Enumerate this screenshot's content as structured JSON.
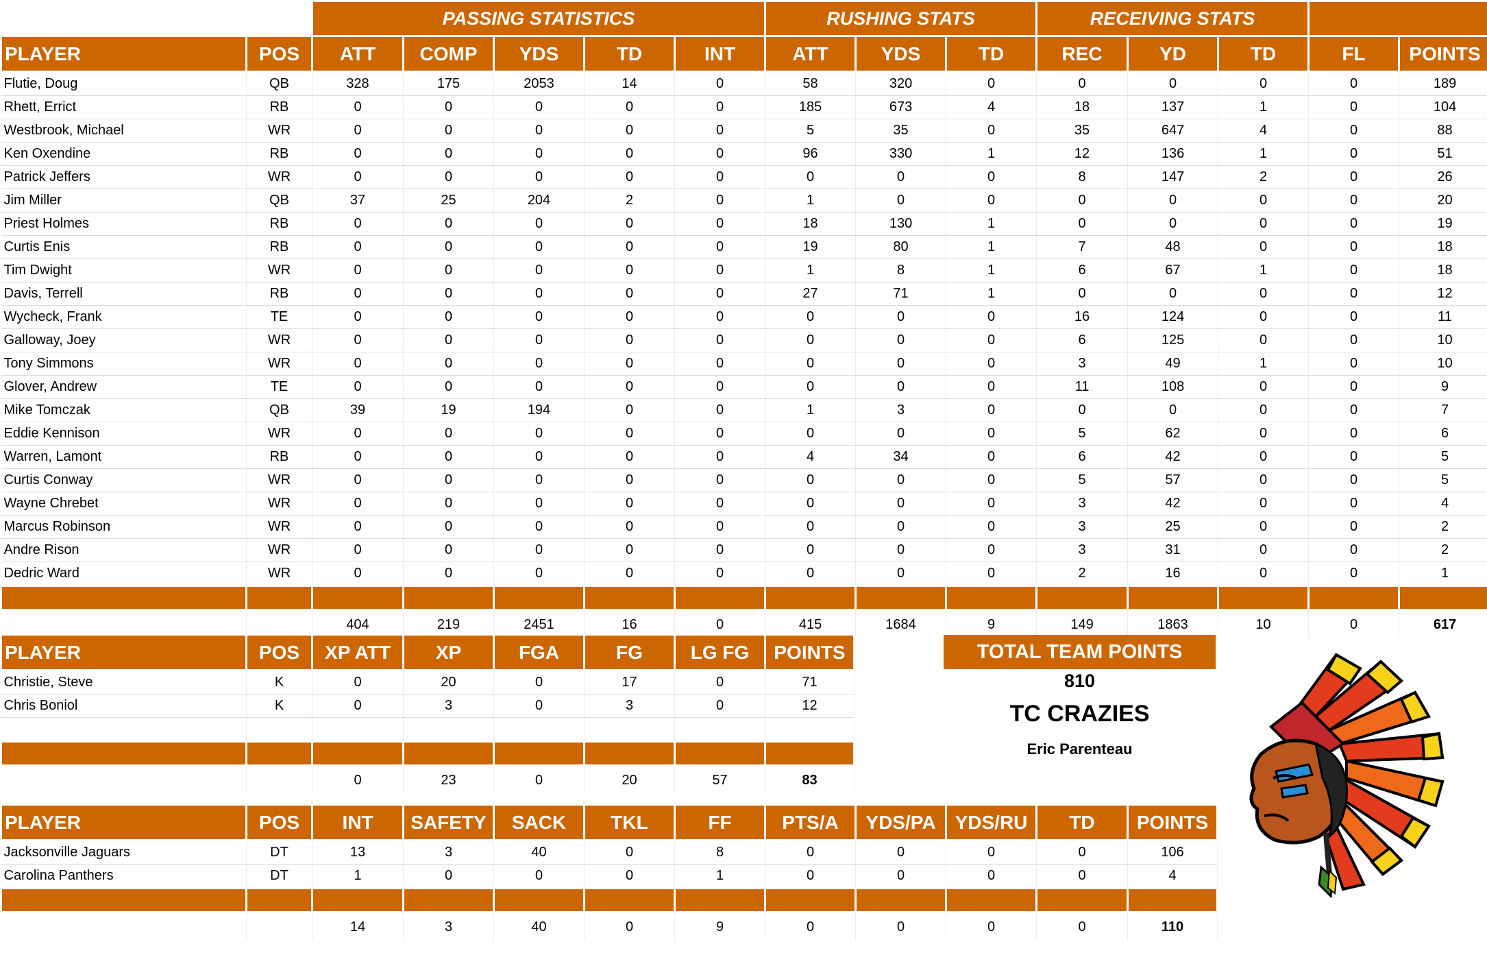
{
  "offense": {
    "group_headers": {
      "passing": "PASSING STATISTICS",
      "rushing": "RUSHING STATS",
      "receiving": "RECEIVING STATS"
    },
    "columns": [
      "PLAYER",
      "POS",
      "ATT",
      "COMP",
      "YDS",
      "TD",
      "INT",
      "ATT",
      "YDS",
      "TD",
      "REC",
      "YD",
      "TD",
      "FL",
      "POINTS"
    ],
    "rows": [
      [
        "Flutie, Doug",
        "QB",
        "328",
        "175",
        "2053",
        "14",
        "0",
        "58",
        "320",
        "0",
        "0",
        "0",
        "0",
        "0",
        "189"
      ],
      [
        "Rhett, Errict",
        "RB",
        "0",
        "0",
        "0",
        "0",
        "0",
        "185",
        "673",
        "4",
        "18",
        "137",
        "1",
        "0",
        "104"
      ],
      [
        "Westbrook, Michael",
        "WR",
        "0",
        "0",
        "0",
        "0",
        "0",
        "5",
        "35",
        "0",
        "35",
        "647",
        "4",
        "0",
        "88"
      ],
      [
        "Ken Oxendine",
        "RB",
        "0",
        "0",
        "0",
        "0",
        "0",
        "96",
        "330",
        "1",
        "12",
        "136",
        "1",
        "0",
        "51"
      ],
      [
        "Patrick Jeffers",
        "WR",
        "0",
        "0",
        "0",
        "0",
        "0",
        "0",
        "0",
        "0",
        "8",
        "147",
        "2",
        "0",
        "26"
      ],
      [
        "Jim Miller",
        "QB",
        "37",
        "25",
        "204",
        "2",
        "0",
        "1",
        "0",
        "0",
        "0",
        "0",
        "0",
        "0",
        "20"
      ],
      [
        "Priest Holmes",
        "RB",
        "0",
        "0",
        "0",
        "0",
        "0",
        "18",
        "130",
        "1",
        "0",
        "0",
        "0",
        "0",
        "19"
      ],
      [
        "Curtis Enis",
        "RB",
        "0",
        "0",
        "0",
        "0",
        "0",
        "19",
        "80",
        "1",
        "7",
        "48",
        "0",
        "0",
        "18"
      ],
      [
        "Tim Dwight",
        "WR",
        "0",
        "0",
        "0",
        "0",
        "0",
        "1",
        "8",
        "1",
        "6",
        "67",
        "1",
        "0",
        "18"
      ],
      [
        "Davis, Terrell",
        "RB",
        "0",
        "0",
        "0",
        "0",
        "0",
        "27",
        "71",
        "1",
        "0",
        "0",
        "0",
        "0",
        "12"
      ],
      [
        "Wycheck, Frank",
        "TE",
        "0",
        "0",
        "0",
        "0",
        "0",
        "0",
        "0",
        "0",
        "16",
        "124",
        "0",
        "0",
        "11"
      ],
      [
        "Galloway, Joey",
        "WR",
        "0",
        "0",
        "0",
        "0",
        "0",
        "0",
        "0",
        "0",
        "6",
        "125",
        "0",
        "0",
        "10"
      ],
      [
        "Tony Simmons",
        "WR",
        "0",
        "0",
        "0",
        "0",
        "0",
        "0",
        "0",
        "0",
        "3",
        "49",
        "1",
        "0",
        "10"
      ],
      [
        "Glover, Andrew",
        "TE",
        "0",
        "0",
        "0",
        "0",
        "0",
        "0",
        "0",
        "0",
        "11",
        "108",
        "0",
        "0",
        "9"
      ],
      [
        "Mike Tomczak",
        "QB",
        "39",
        "19",
        "194",
        "0",
        "0",
        "1",
        "3",
        "0",
        "0",
        "0",
        "0",
        "0",
        "7"
      ],
      [
        "Eddie Kennison",
        "WR",
        "0",
        "0",
        "0",
        "0",
        "0",
        "0",
        "0",
        "0",
        "5",
        "62",
        "0",
        "0",
        "6"
      ],
      [
        "Warren, Lamont",
        "RB",
        "0",
        "0",
        "0",
        "0",
        "0",
        "4",
        "34",
        "0",
        "6",
        "42",
        "0",
        "0",
        "5"
      ],
      [
        "Curtis Conway",
        "WR",
        "0",
        "0",
        "0",
        "0",
        "0",
        "0",
        "0",
        "0",
        "5",
        "57",
        "0",
        "0",
        "5"
      ],
      [
        "Wayne Chrebet",
        "WR",
        "0",
        "0",
        "0",
        "0",
        "0",
        "0",
        "0",
        "0",
        "3",
        "42",
        "0",
        "0",
        "4"
      ],
      [
        "Marcus Robinson",
        "WR",
        "0",
        "0",
        "0",
        "0",
        "0",
        "0",
        "0",
        "0",
        "3",
        "25",
        "0",
        "0",
        "2"
      ],
      [
        "Andre Rison",
        "WR",
        "0",
        "0",
        "0",
        "0",
        "0",
        "0",
        "0",
        "0",
        "3",
        "31",
        "0",
        "0",
        "2"
      ],
      [
        "Dedric Ward",
        "WR",
        "0",
        "0",
        "0",
        "0",
        "0",
        "0",
        "0",
        "0",
        "2",
        "16",
        "0",
        "0",
        "1"
      ]
    ],
    "totals": [
      "",
      "",
      "404",
      "219",
      "2451",
      "16",
      "0",
      "415",
      "1684",
      "9",
      "149",
      "1863",
      "10",
      "0",
      "617"
    ]
  },
  "kicking": {
    "columns": [
      "PLAYER",
      "POS",
      "XP ATT",
      "XP",
      "FGA",
      "FG",
      "LG FG",
      "POINTS"
    ],
    "rows": [
      [
        "Christie, Steve",
        "K",
        "0",
        "20",
        "0",
        "17",
        "0",
        "71"
      ],
      [
        "Chris Boniol",
        "K",
        "0",
        "3",
        "0",
        "3",
        "0",
        "12"
      ]
    ],
    "totals": [
      "",
      "",
      "0",
      "23",
      "0",
      "20",
      "57",
      "83"
    ]
  },
  "defense": {
    "columns": [
      "PLAYER",
      "POS",
      "INT",
      "SAFETY",
      "SACK",
      "TKL",
      "FF",
      "PTS/A",
      "YDS/PA",
      "YDS/RU",
      "TD",
      "POINTS"
    ],
    "rows": [
      [
        "Jacksonville Jaguars",
        "DT",
        "13",
        "3",
        "40",
        "0",
        "8",
        "0",
        "0",
        "0",
        "0",
        "106"
      ],
      [
        "Carolina Panthers",
        "DT",
        "1",
        "0",
        "0",
        "0",
        "1",
        "0",
        "0",
        "0",
        "0",
        "4"
      ]
    ],
    "totals": [
      "",
      "",
      "14",
      "3",
      "40",
      "0",
      "9",
      "0",
      "0",
      "0",
      "0",
      "110"
    ]
  },
  "summary": {
    "total_label": "TOTAL TEAM POINTS",
    "total_value": "810",
    "team_name": "TC CRAZIES",
    "owner": "Eric Parenteau"
  },
  "logo": {
    "icon": "indian-chief-headdress-icon"
  },
  "colors": {
    "header": "#cc6600",
    "header_text": "#ffffff"
  }
}
